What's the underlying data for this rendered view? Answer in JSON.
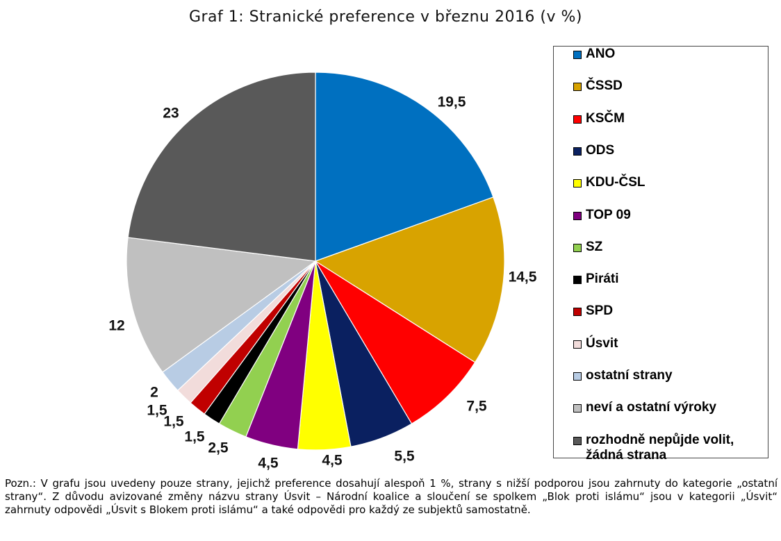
{
  "title": "Graf 1: Stranické preference v březnu 2016 (v %)",
  "chart_data": {
    "type": "pie",
    "title": "Graf 1: Stranické preference v březnu 2016 (v %)",
    "categories": [
      "ANO",
      "ČSSD",
      "KSČM",
      "ODS",
      "KDU-ČSL",
      "TOP 09",
      "SZ",
      "Piráti",
      "SPD",
      "Úsvit",
      "ostatní strany",
      "neví a ostatní výroky",
      "rozhodně nepůjde volit, žádná strana"
    ],
    "values": [
      19.5,
      14.5,
      7.5,
      5.5,
      4.5,
      4.5,
      2.5,
      1.5,
      1.5,
      1.5,
      2,
      12,
      23
    ],
    "data_labels": [
      "19,5",
      "14,5",
      "7,5",
      "5,5",
      "4,5",
      "4,5",
      "2,5",
      "1,5",
      "1,5",
      "1,5",
      "2",
      "12",
      "23"
    ],
    "colors": [
      "#0070c0",
      "#d8a300",
      "#ff0000",
      "#0a2060",
      "#ffff00",
      "#800080",
      "#92d050",
      "#000000",
      "#c00000",
      "#f2dcdb",
      "#b8cce4",
      "#c0c0c0",
      "#595959"
    ],
    "legend_position": "right"
  },
  "legend": [
    {
      "label": "ANO",
      "color": "#0070c0"
    },
    {
      "label": "ČSSD",
      "color": "#d8a300"
    },
    {
      "label": "KSČM",
      "color": "#ff0000"
    },
    {
      "label": "ODS",
      "color": "#0a2060"
    },
    {
      "label": "KDU-ČSL",
      "color": "#ffff00"
    },
    {
      "label": "TOP 09",
      "color": "#800080"
    },
    {
      "label": "SZ",
      "color": "#92d050"
    },
    {
      "label": "Piráti",
      "color": "#000000"
    },
    {
      "label": "SPD",
      "color": "#c00000"
    },
    {
      "label": "Úsvit",
      "color": "#f2dcdb"
    },
    {
      "label": "ostatní strany",
      "color": "#b8cce4"
    },
    {
      "label": "neví a ostatní výroky",
      "color": "#c0c0c0"
    },
    {
      "label": "rozhodně nepůjde volit,\nžádná strana",
      "color": "#595959"
    }
  ],
  "note": "Pozn.: V grafu jsou uvedeny pouze strany, jejichž preference dosahují alespoň 1 %, strany s nižší podporou jsou zahrnuty do kategorie „ostatní strany“. Z důvodu avizované změny názvu strany Úsvit – Národní koalice a sloučení se spolkem „Blok proti islámu“ jsou v kategorii „Úsvit“ zahrnuty odpovědi „Úsvit s Blokem proti islámu“ a také odpovědi pro každý ze subjektů samostatně."
}
